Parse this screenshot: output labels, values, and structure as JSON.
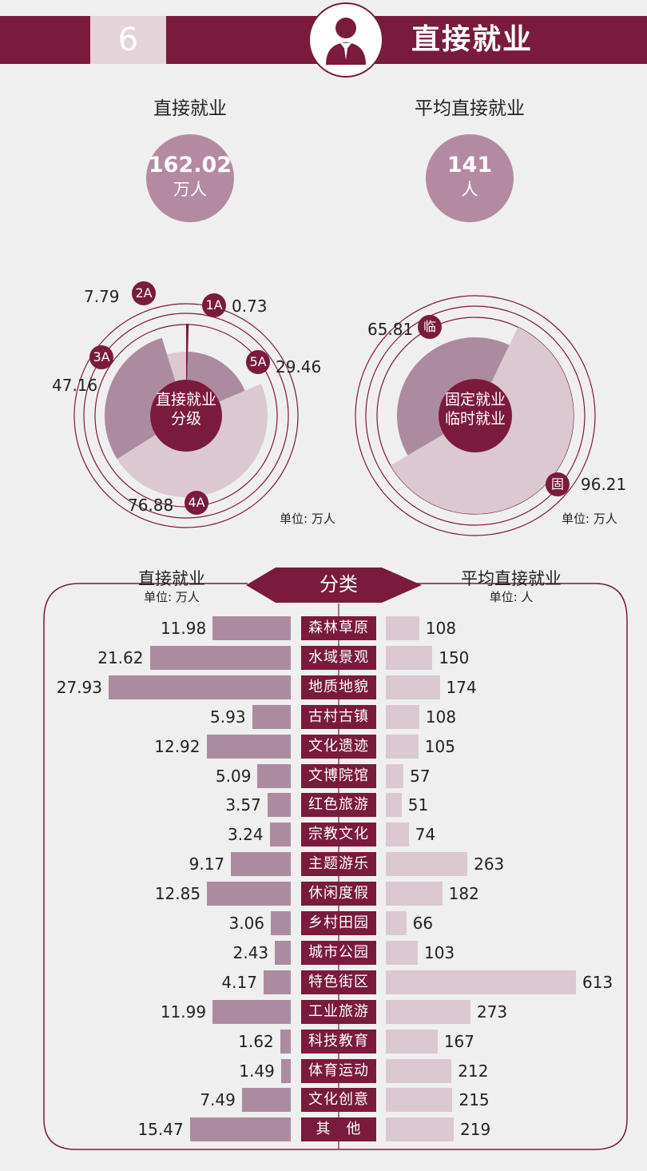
{
  "header": {
    "number": "6",
    "title": "直接就业"
  },
  "stats": [
    {
      "label": "直接就业",
      "value": "162.02",
      "unit": "万人"
    },
    {
      "label": "平均直接就业",
      "value": "141",
      "unit": "人"
    }
  ],
  "colors": {
    "dark": "#7a1a3c",
    "mid": "#ac8ba0",
    "light": "#dbc8d0",
    "bg": "#efefef"
  },
  "chart_data": [
    {
      "type": "pie",
      "center_label": [
        "直接就业",
        "分级"
      ],
      "unit_label": "单位: 万人",
      "slices": [
        {
          "name": "1A",
          "value": 0.73
        },
        {
          "name": "5A",
          "value": 29.46
        },
        {
          "name": "4A",
          "value": 76.88
        },
        {
          "name": "3A",
          "value": 47.16
        },
        {
          "name": "2A",
          "value": 7.79
        }
      ]
    },
    {
      "type": "pie",
      "center_label": [
        "固定就业",
        "临时就业"
      ],
      "unit_label": "单位: 万人",
      "slices": [
        {
          "name": "固",
          "value": 96.21
        },
        {
          "name": "临",
          "value": 65.81
        }
      ]
    },
    {
      "type": "bar",
      "center_title": "分类",
      "left_title": "直接就业",
      "left_unit": "单位: 万人",
      "right_title": "平均直接就业",
      "right_unit": "单位: 人",
      "categories": [
        "森林草原",
        "水域景观",
        "地质地貌",
        "古村古镇",
        "文化遗迹",
        "文博院馆",
        "红色旅游",
        "宗教文化",
        "主题游乐",
        "休闲度假",
        "乡村田园",
        "城市公园",
        "特色街区",
        "工业旅游",
        "科技教育",
        "体育运动",
        "文化创意",
        "其　他"
      ],
      "series": [
        {
          "name": "直接就业",
          "values": [
            11.98,
            21.62,
            27.93,
            5.93,
            12.92,
            5.09,
            3.57,
            3.24,
            9.17,
            12.85,
            3.06,
            2.43,
            4.17,
            11.99,
            1.62,
            1.49,
            7.49,
            15.47
          ]
        },
        {
          "name": "平均直接就业",
          "values": [
            108,
            150,
            174,
            108,
            105,
            57,
            51,
            74,
            263,
            182,
            66,
            103,
            613,
            273,
            167,
            212,
            215,
            219
          ]
        }
      ]
    }
  ]
}
